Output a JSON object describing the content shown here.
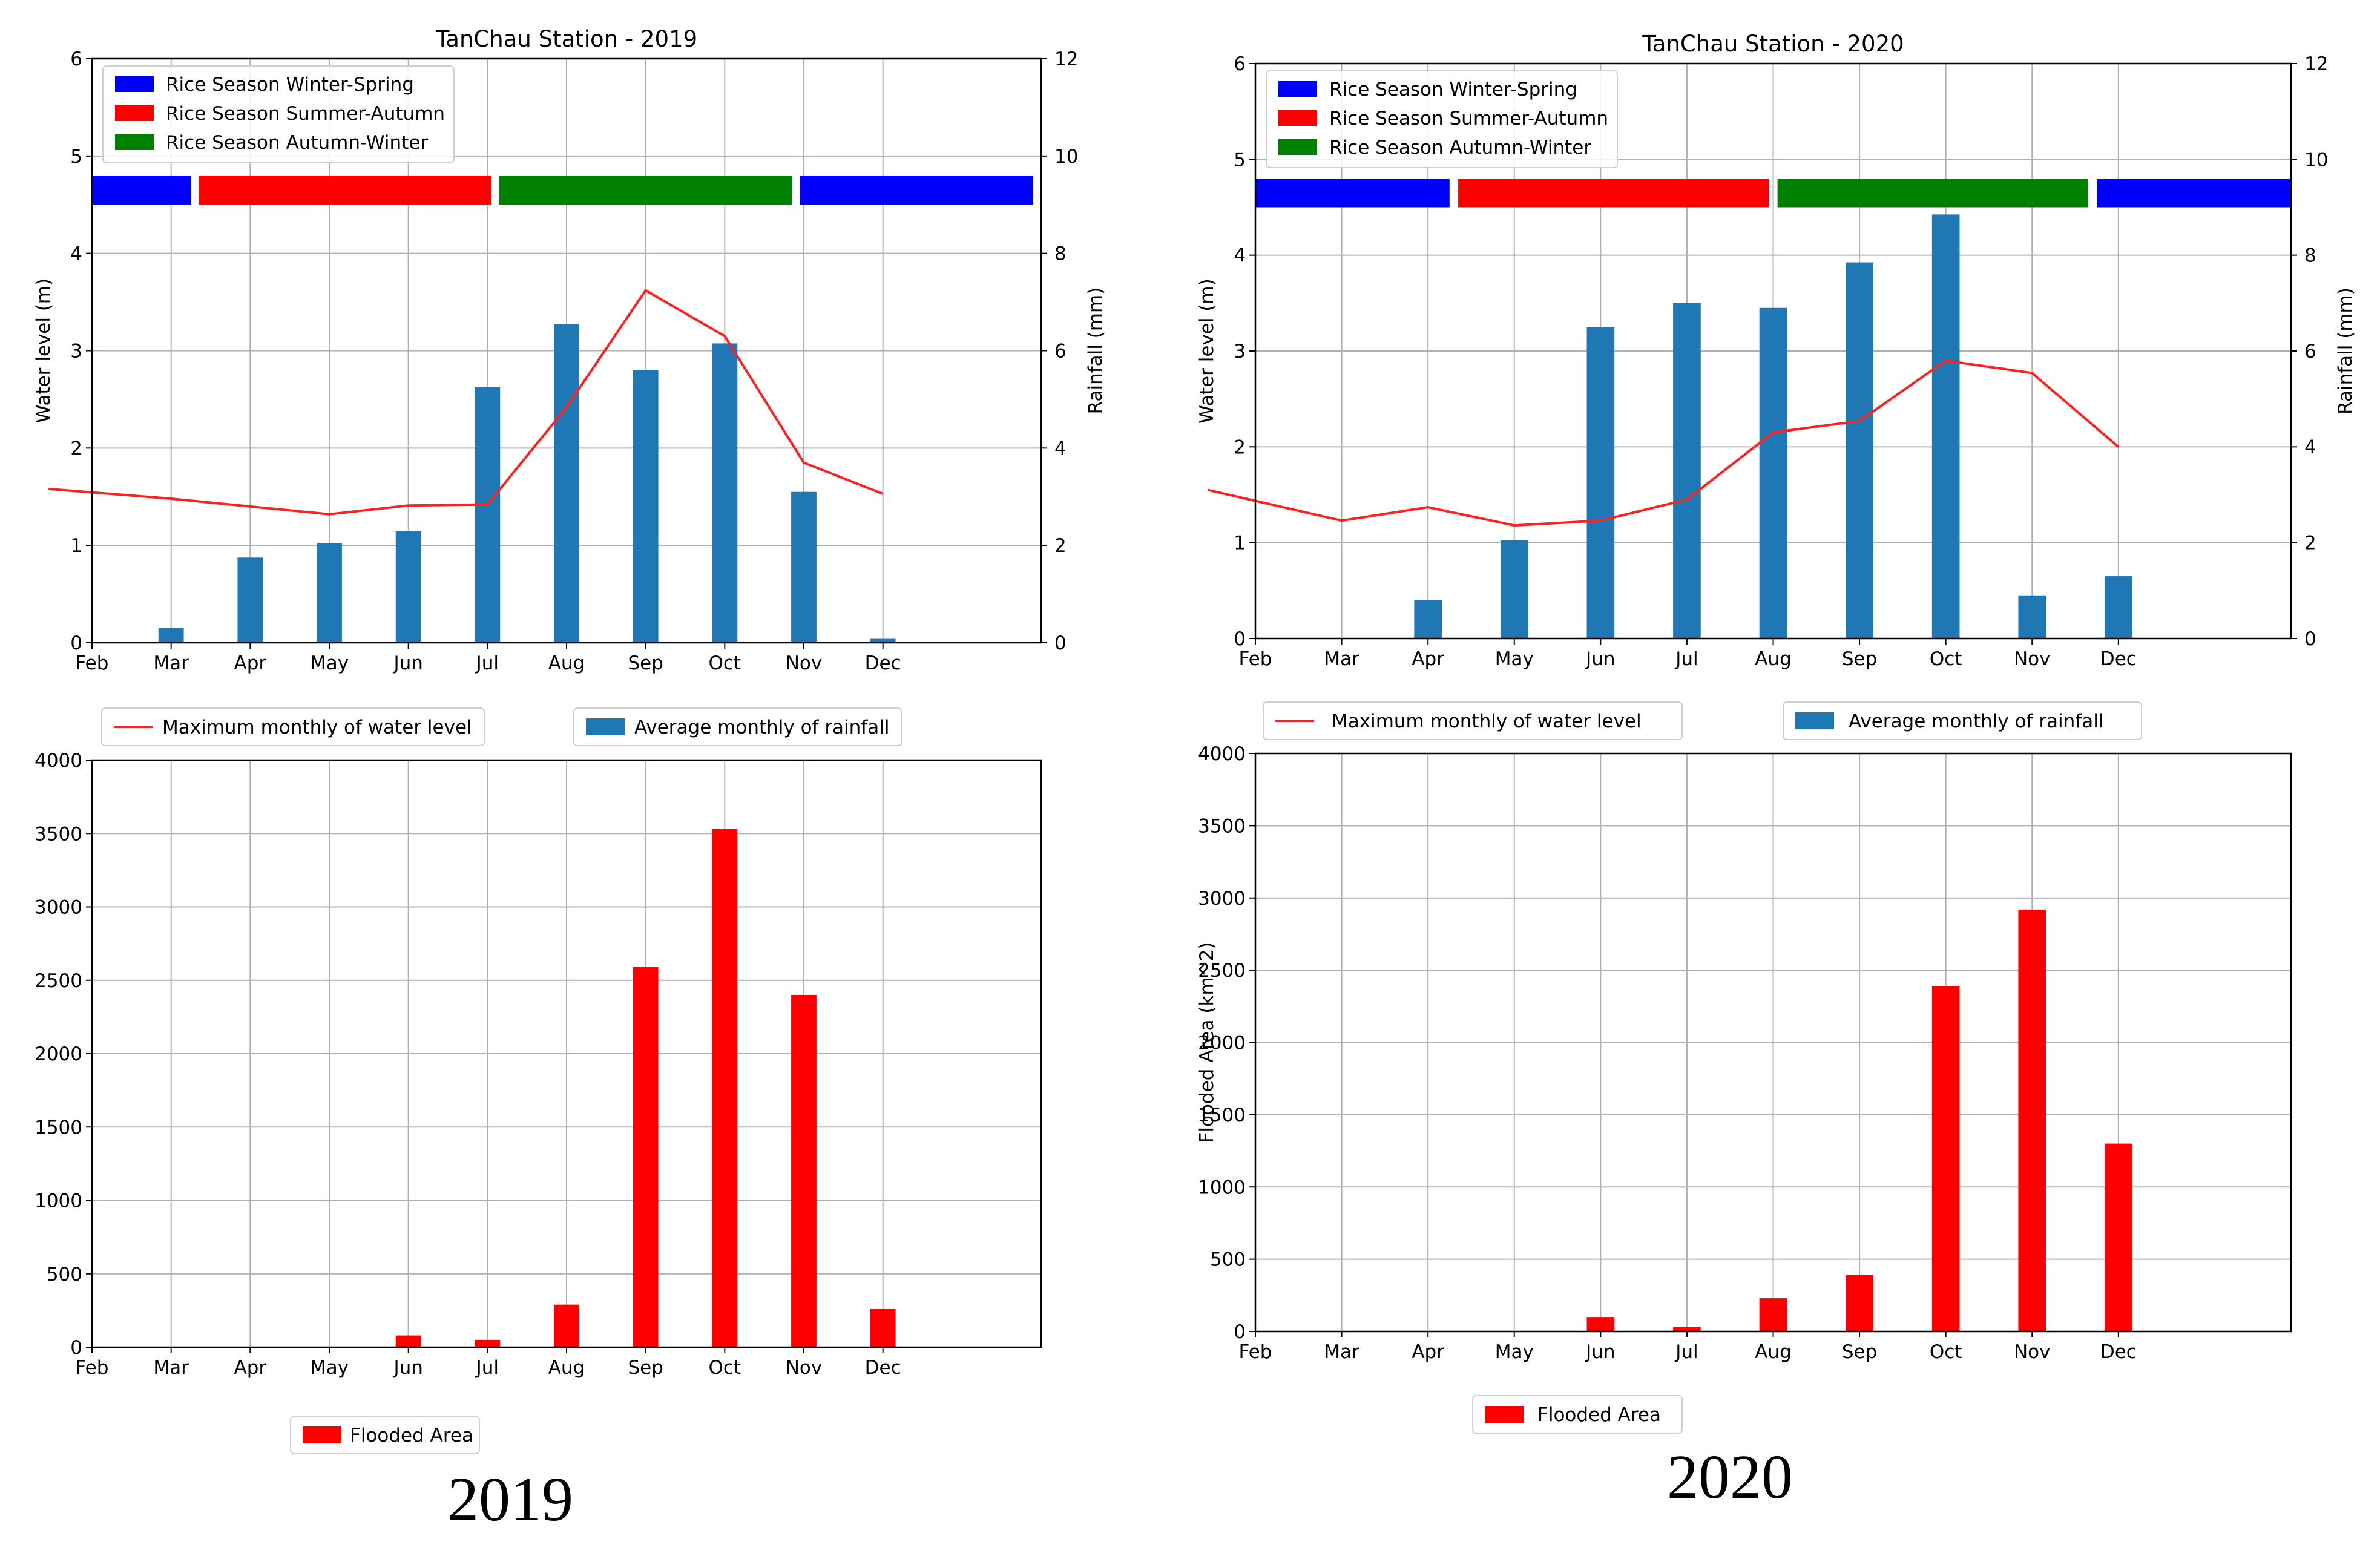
{
  "colors": {
    "winter_spring": "#0000ff",
    "summer_autumn": "#ff0000",
    "autumn_winter": "#008000",
    "water_line": "#ff2020",
    "rainfall_bar": "#1f77b4",
    "flood_bar": "#ff0000"
  },
  "chart_data": [
    {
      "id": "wl2019",
      "type": "bar",
      "title": "TanChau Station - 2019",
      "categories": [
        "Feb",
        "Mar",
        "Apr",
        "May",
        "Jun",
        "Jul",
        "Aug",
        "Sep",
        "Oct",
        "Nov",
        "Dec"
      ],
      "ylabel": "Water level (m)",
      "y2label": "Rainfall (mm)",
      "ylim": [
        0,
        6
      ],
      "y2lim": [
        0,
        12
      ],
      "yticks": [
        "0",
        "1",
        "2",
        "3",
        "4",
        "5",
        "6"
      ],
      "y2ticks": [
        "0",
        "2",
        "4",
        "6",
        "8",
        "10",
        "12"
      ],
      "grid": true,
      "season_legend": [
        "Rice Season Winter-Spring",
        "Rice Season Summer-Autumn",
        "Rice Season Autumn-Winter"
      ],
      "season_bar": [
        {
          "season": "winter_spring",
          "from": -0.55,
          "to": 1.25
        },
        {
          "season": "summer_autumn",
          "from": 1.35,
          "to": 5.05
        },
        {
          "season": "autumn_winter",
          "from": 5.15,
          "to": 8.85
        },
        {
          "season": "winter_spring",
          "from": 8.95,
          "to": 11.9
        }
      ],
      "season_band_level": [
        4.5,
        4.8
      ],
      "series": [
        {
          "name": "Maximum monthly of water level",
          "type": "line",
          "axis": "left",
          "x": [
            -0.55,
            1,
            2,
            3,
            4,
            5,
            6,
            7,
            8,
            9,
            10
          ],
          "values": [
            1.58,
            1.48,
            1.4,
            1.32,
            1.41,
            1.42,
            2.42,
            3.62,
            3.15,
            1.85,
            1.53
          ]
        },
        {
          "name": "Average monthly of rainfall",
          "type": "bar",
          "axis": "right",
          "values": [
            0,
            0.3,
            1.75,
            2.05,
            2.3,
            5.25,
            6.55,
            5.6,
            6.15,
            3.1,
            0.08
          ]
        }
      ],
      "legend_below": [
        "Maximum monthly of water level",
        "Average monthly of rainfall"
      ]
    },
    {
      "id": "wl2020",
      "type": "bar",
      "title": "TanChau Station - 2020",
      "categories": [
        "Feb",
        "Mar",
        "Apr",
        "May",
        "Jun",
        "Jul",
        "Aug",
        "Sep",
        "Oct",
        "Nov",
        "Dec"
      ],
      "ylabel": "Water level (m)",
      "y2label": "Rainfall (mm)",
      "ylim": [
        0,
        6
      ],
      "y2lim": [
        0,
        12
      ],
      "yticks": [
        "0",
        "1",
        "2",
        "3",
        "4",
        "5",
        "6"
      ],
      "y2ticks": [
        "0",
        "2",
        "4",
        "6",
        "8",
        "10",
        "12"
      ],
      "grid": true,
      "season_legend": [
        "Rice Season Winter-Spring",
        "Rice Season Summer-Autumn",
        "Rice Season Autumn-Winter"
      ],
      "season_bar": [
        {
          "season": "winter_spring",
          "from": -0.55,
          "to": 2.25
        },
        {
          "season": "summer_autumn",
          "from": 2.35,
          "to": 5.95
        },
        {
          "season": "autumn_winter",
          "from": 6.05,
          "to": 9.65
        },
        {
          "season": "winter_spring",
          "from": 9.75,
          "to": 12.0
        }
      ],
      "season_band_level": [
        4.5,
        4.8
      ],
      "series": [
        {
          "name": "Maximum monthly of water level",
          "type": "line",
          "axis": "left",
          "x": [
            -0.55,
            1,
            2,
            3,
            4,
            5,
            6,
            7,
            8,
            9,
            10
          ],
          "values": [
            1.55,
            1.23,
            1.37,
            1.18,
            1.23,
            1.45,
            2.15,
            2.27,
            2.9,
            2.77,
            2.0
          ]
        },
        {
          "name": "Average monthly of rainfall",
          "type": "bar",
          "axis": "right",
          "values": [
            0,
            0,
            0.8,
            2.05,
            6.5,
            7.0,
            6.9,
            7.85,
            8.85,
            0.9,
            1.3
          ]
        }
      ],
      "legend_below": [
        "Maximum monthly of water level",
        "Average monthly of rainfall"
      ]
    },
    {
      "id": "fa2019",
      "type": "bar",
      "title": "",
      "categories": [
        "Feb",
        "Mar",
        "Apr",
        "May",
        "Jun",
        "Jul",
        "Aug",
        "Sep",
        "Oct",
        "Nov",
        "Dec"
      ],
      "ylabel": "",
      "ylim": [
        0,
        4000
      ],
      "yticks": [
        "0",
        "500",
        "1000",
        "1500",
        "2000",
        "2500",
        "3000",
        "3500",
        "4000"
      ],
      "grid": true,
      "series": [
        {
          "name": "Flooded Area",
          "values": [
            0,
            0,
            0,
            0,
            80,
            50,
            290,
            2590,
            3530,
            2400,
            260
          ]
        }
      ],
      "legend_below": [
        "Flooded Area"
      ],
      "year_label": "2019"
    },
    {
      "id": "fa2020",
      "type": "bar",
      "title": "",
      "categories": [
        "Feb",
        "Mar",
        "Apr",
        "May",
        "Jun",
        "Jul",
        "Aug",
        "Sep",
        "Oct",
        "Nov",
        "Dec"
      ],
      "ylabel": "Flooded Area (km^2)",
      "ylim": [
        0,
        4000
      ],
      "yticks": [
        "0",
        "500",
        "1000",
        "1500",
        "2000",
        "2500",
        "3000",
        "3500",
        "4000"
      ],
      "grid": true,
      "series": [
        {
          "name": "Flooded Area",
          "values": [
            0,
            0,
            0,
            0,
            100,
            30,
            230,
            390,
            2390,
            2920,
            1300
          ]
        }
      ],
      "legend_below": [
        "Flooded Area"
      ],
      "year_label": "2020"
    }
  ]
}
